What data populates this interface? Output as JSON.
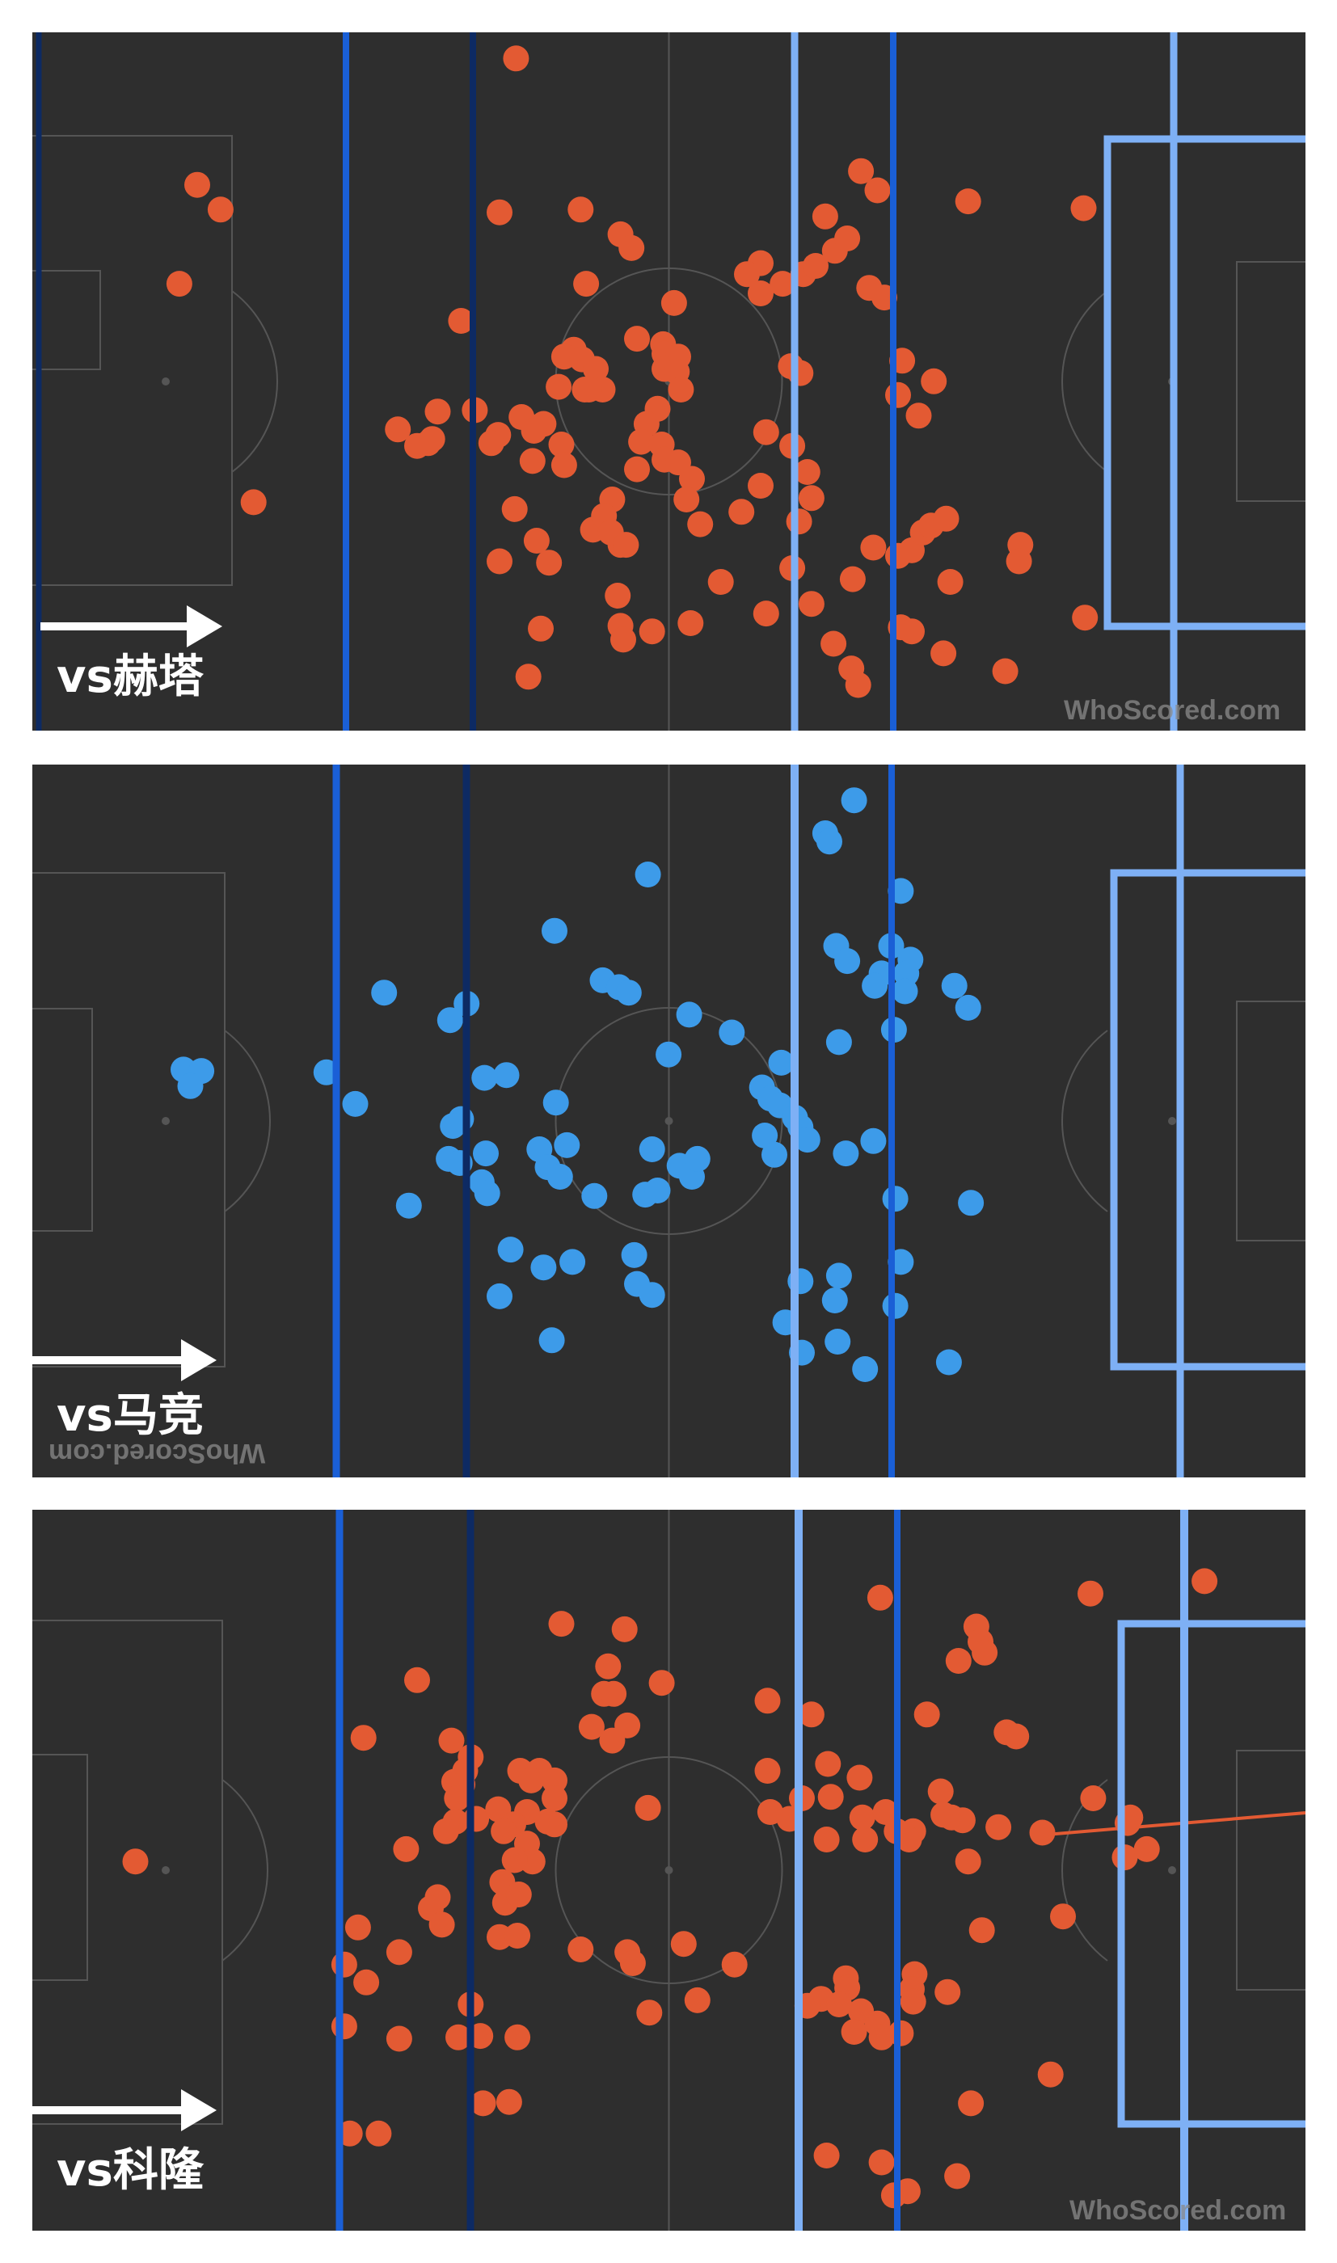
{
  "colors": {
    "pitch": "#2e2e2e",
    "pitch_lines": "#555555",
    "dot_orange": "#e35a33",
    "dot_blue": "#3d9be9",
    "line_navy": "#0d2a63",
    "line_blue": "#1a5fd6",
    "line_light": "#7eb0f5",
    "arrow": "#ffffff"
  },
  "watermark_text": "WhoScored.com",
  "panels": [
    {
      "label": "vs赫塔",
      "dot_color": "orange",
      "points": [
        [
          352,
          19
        ],
        [
          120,
          111
        ],
        [
          137,
          129
        ],
        [
          340,
          131
        ],
        [
          399,
          129
        ],
        [
          428,
          147
        ],
        [
          436,
          157
        ],
        [
          603,
          101
        ],
        [
          615,
          115
        ],
        [
          577,
          134
        ],
        [
          681,
          123
        ],
        [
          765,
          128
        ],
        [
          107,
          183
        ],
        [
          403,
          183
        ],
        [
          312,
          210
        ],
        [
          440,
          223
        ],
        [
          394,
          231
        ],
        [
          387,
          236
        ],
        [
          400,
          238
        ],
        [
          410,
          245
        ],
        [
          415,
          260
        ],
        [
          402,
          260
        ],
        [
          383,
          258
        ],
        [
          372,
          285
        ],
        [
          339,
          293
        ],
        [
          322,
          275
        ],
        [
          356,
          280
        ],
        [
          365,
          290
        ],
        [
          385,
          300
        ],
        [
          364,
          312
        ],
        [
          387,
          315
        ],
        [
          351,
          347
        ],
        [
          367,
          370
        ],
        [
          376,
          386
        ],
        [
          408,
          362
        ],
        [
          422,
          340
        ],
        [
          405,
          260
        ],
        [
          530,
          168
        ],
        [
          520,
          176
        ],
        [
          530,
          190
        ],
        [
          546,
          183
        ],
        [
          561,
          176
        ],
        [
          570,
          170
        ],
        [
          584,
          159
        ],
        [
          593,
          150
        ],
        [
          620,
          193
        ],
        [
          609,
          186
        ],
        [
          467,
          197
        ],
        [
          459,
          227
        ],
        [
          460,
          234
        ],
        [
          470,
          236
        ],
        [
          460,
          245
        ],
        [
          469,
          247
        ],
        [
          472,
          260
        ],
        [
          455,
          274
        ],
        [
          447,
          285
        ],
        [
          443,
          298
        ],
        [
          458,
          300
        ],
        [
          440,
          318
        ],
        [
          460,
          311
        ],
        [
          470,
          313
        ],
        [
          480,
          325
        ],
        [
          476,
          340
        ],
        [
          486,
          358
        ],
        [
          516,
          349
        ],
        [
          530,
          330
        ],
        [
          552,
          243
        ],
        [
          559,
          248
        ],
        [
          534,
          291
        ],
        [
          553,
          301
        ],
        [
          564,
          320
        ],
        [
          567,
          339
        ],
        [
          558,
          356
        ],
        [
          553,
          390
        ],
        [
          633,
          239
        ],
        [
          656,
          254
        ],
        [
          630,
          264
        ],
        [
          645,
          279
        ],
        [
          416,
          352
        ],
        [
          428,
          373
        ],
        [
          426,
          410
        ],
        [
          428,
          432
        ],
        [
          430,
          442
        ],
        [
          451,
          436
        ],
        [
          479,
          430
        ],
        [
          421,
          364
        ],
        [
          432,
          373
        ],
        [
          501,
          400
        ],
        [
          534,
          423
        ],
        [
          567,
          416
        ],
        [
          583,
          445
        ],
        [
          596,
          463
        ],
        [
          612,
          375
        ],
        [
          630,
          381
        ],
        [
          640,
          377
        ],
        [
          648,
          364
        ],
        [
          654,
          359
        ],
        [
          665,
          354
        ],
        [
          597,
          398
        ],
        [
          632,
          433
        ],
        [
          640,
          436
        ],
        [
          663,
          452
        ],
        [
          668,
          400
        ],
        [
          719,
          373
        ],
        [
          718,
          385
        ],
        [
          766,
          426
        ],
        [
          708,
          465
        ],
        [
          601,
          475
        ],
        [
          161,
          342
        ],
        [
          266,
          289
        ],
        [
          295,
          276
        ],
        [
          288,
          299
        ],
        [
          280,
          301
        ],
        [
          291,
          296
        ],
        [
          334,
          299
        ],
        [
          340,
          385
        ],
        [
          370,
          434
        ],
        [
          361,
          469
        ],
        [
          246,
          513
        ],
        [
          747,
          519
        ],
        [
          876,
          525
        ]
      ]
    },
    {
      "label": "vs马竞",
      "dot_color": "blue",
      "points": [
        [
          598,
          26
        ],
        [
          577,
          50
        ],
        [
          580,
          56
        ],
        [
          448,
          80
        ],
        [
          632,
          92
        ],
        [
          380,
          121
        ],
        [
          585,
          132
        ],
        [
          625,
          132
        ],
        [
          593,
          143
        ],
        [
          639,
          142
        ],
        [
          636,
          152
        ],
        [
          618,
          152
        ],
        [
          613,
          161
        ],
        [
          635,
          165
        ],
        [
          671,
          161
        ],
        [
          681,
          177
        ],
        [
          415,
          157
        ],
        [
          427,
          162
        ],
        [
          434,
          166
        ],
        [
          256,
          166
        ],
        [
          316,
          174
        ],
        [
          304,
          186
        ],
        [
          478,
          182
        ],
        [
          627,
          193
        ],
        [
          587,
          202
        ],
        [
          509,
          195
        ],
        [
          463,
          211
        ],
        [
          545,
          217
        ],
        [
          110,
          222
        ],
        [
          123,
          223
        ],
        [
          115,
          234
        ],
        [
          214,
          224
        ],
        [
          235,
          247
        ],
        [
          345,
          226
        ],
        [
          329,
          228
        ],
        [
          381,
          246
        ],
        [
          531,
          235
        ],
        [
          537,
          243
        ],
        [
          544,
          248
        ],
        [
          555,
          257
        ],
        [
          559,
          264
        ],
        [
          564,
          273
        ],
        [
          533,
          270
        ],
        [
          592,
          283
        ],
        [
          612,
          274
        ],
        [
          540,
          284
        ],
        [
          312,
          258
        ],
        [
          306,
          263
        ],
        [
          303,
          287
        ],
        [
          311,
          290
        ],
        [
          327,
          304
        ],
        [
          330,
          283
        ],
        [
          369,
          280
        ],
        [
          375,
          293
        ],
        [
          384,
          300
        ],
        [
          389,
          277
        ],
        [
          451,
          280
        ],
        [
          471,
          292
        ],
        [
          480,
          300
        ],
        [
          484,
          287
        ],
        [
          446,
          313
        ],
        [
          455,
          310
        ],
        [
          409,
          314
        ],
        [
          331,
          312
        ],
        [
          274,
          321
        ],
        [
          628,
          316
        ],
        [
          683,
          319
        ],
        [
          348,
          353
        ],
        [
          372,
          366
        ],
        [
          393,
          362
        ],
        [
          438,
          357
        ],
        [
          440,
          378
        ],
        [
          451,
          386
        ],
        [
          559,
          376
        ],
        [
          587,
          372
        ],
        [
          632,
          362
        ],
        [
          584,
          390
        ],
        [
          628,
          394
        ],
        [
          560,
          428
        ],
        [
          548,
          406
        ],
        [
          586,
          420
        ],
        [
          606,
          440
        ],
        [
          667,
          435
        ],
        [
          340,
          387
        ],
        [
          378,
          419
        ],
        [
          131,
          836
        ],
        [
          128,
          856
        ],
        [
          130,
          922
        ],
        [
          192,
          923
        ],
        [
          190,
          950
        ],
        [
          287,
          958
        ],
        [
          378,
          965
        ]
      ],
      "_comment": "y for points after index 84 are not used"
    },
    {
      "label": "vs科隆",
      "dot_color": "orange",
      "points": [
        [
          985,
          6
        ],
        [
          617,
          64
        ],
        [
          770,
          61
        ],
        [
          853,
          52
        ],
        [
          385,
          83
        ],
        [
          431,
          87
        ],
        [
          687,
          85
        ],
        [
          690,
          96
        ],
        [
          693,
          104
        ],
        [
          674,
          110
        ],
        [
          419,
          114
        ],
        [
          416,
          134
        ],
        [
          458,
          126
        ],
        [
          280,
          124
        ],
        [
          423,
          134
        ],
        [
          407,
          158
        ],
        [
          433,
          157
        ],
        [
          422,
          168
        ],
        [
          535,
          139
        ],
        [
          567,
          149
        ],
        [
          651,
          149
        ],
        [
          709,
          162
        ],
        [
          716,
          165
        ],
        [
          241,
          166
        ],
        [
          305,
          168
        ],
        [
          319,
          180
        ],
        [
          315,
          190
        ],
        [
          307,
          198
        ],
        [
          355,
          190
        ],
        [
          369,
          190
        ],
        [
          363,
          197
        ],
        [
          380,
          197
        ],
        [
          380,
          210
        ],
        [
          313,
          200
        ],
        [
          309,
          210
        ],
        [
          323,
          225
        ],
        [
          339,
          218
        ],
        [
          360,
          220
        ],
        [
          350,
          229
        ],
        [
          375,
          227
        ],
        [
          308,
          227
        ],
        [
          301,
          234
        ],
        [
          343,
          234
        ],
        [
          360,
          243
        ],
        [
          380,
          229
        ],
        [
          364,
          256
        ],
        [
          351,
          255
        ],
        [
          448,
          217
        ],
        [
          535,
          190
        ],
        [
          579,
          185
        ],
        [
          602,
          195
        ],
        [
          581,
          209
        ],
        [
          560,
          210
        ],
        [
          537,
          220
        ],
        [
          551,
          225
        ],
        [
          578,
          240
        ],
        [
          604,
          224
        ],
        [
          621,
          220
        ],
        [
          629,
          234
        ],
        [
          641,
          234
        ],
        [
          661,
          205
        ],
        [
          663,
          222
        ],
        [
          669,
          224
        ],
        [
          677,
          226
        ],
        [
          606,
          240
        ],
        [
          638,
          240
        ],
        [
          681,
          256
        ],
        [
          703,
          231
        ],
        [
          735,
          235
        ],
        [
          772,
          210
        ],
        [
          797,
          228
        ],
        [
          795,
          253
        ],
        [
          811,
          247
        ],
        [
          799,
          224
        ],
        [
          272,
          247
        ],
        [
          342,
          271
        ],
        [
          344,
          286
        ],
        [
          354,
          280
        ],
        [
          340,
          311
        ],
        [
          353,
          310
        ],
        [
          295,
          282
        ],
        [
          290,
          290
        ],
        [
          298,
          302
        ],
        [
          267,
          322
        ],
        [
          237,
          304
        ],
        [
          227,
          331
        ],
        [
          243,
          344
        ],
        [
          227,
          376
        ],
        [
          252,
          454
        ],
        [
          267,
          385
        ],
        [
          310,
          384
        ],
        [
          319,
          360
        ],
        [
          326,
          383
        ],
        [
          353,
          384
        ],
        [
          347,
          431
        ],
        [
          399,
          320
        ],
        [
          433,
          322
        ],
        [
          437,
          330
        ],
        [
          474,
          316
        ],
        [
          511,
          331
        ],
        [
          449,
          366
        ],
        [
          484,
          357
        ],
        [
          592,
          341
        ],
        [
          593,
          348
        ],
        [
          574,
          356
        ],
        [
          564,
          361
        ],
        [
          603,
          365
        ],
        [
          587,
          360
        ],
        [
          598,
          380
        ],
        [
          615,
          374
        ],
        [
          618,
          384
        ],
        [
          632,
          381
        ],
        [
          642,
          338
        ],
        [
          640,
          349
        ],
        [
          641,
          358
        ],
        [
          666,
          351
        ],
        [
          691,
          306
        ],
        [
          750,
          296
        ],
        [
          231,
          454
        ],
        [
          328,
          432
        ],
        [
          578,
          470
        ],
        [
          627,
          499
        ],
        [
          637,
          496
        ],
        [
          618,
          475
        ],
        [
          683,
          432
        ],
        [
          673,
          485
        ],
        [
          741,
          411
        ],
        [
          75,
          256
        ]
      ]
    }
  ]
}
